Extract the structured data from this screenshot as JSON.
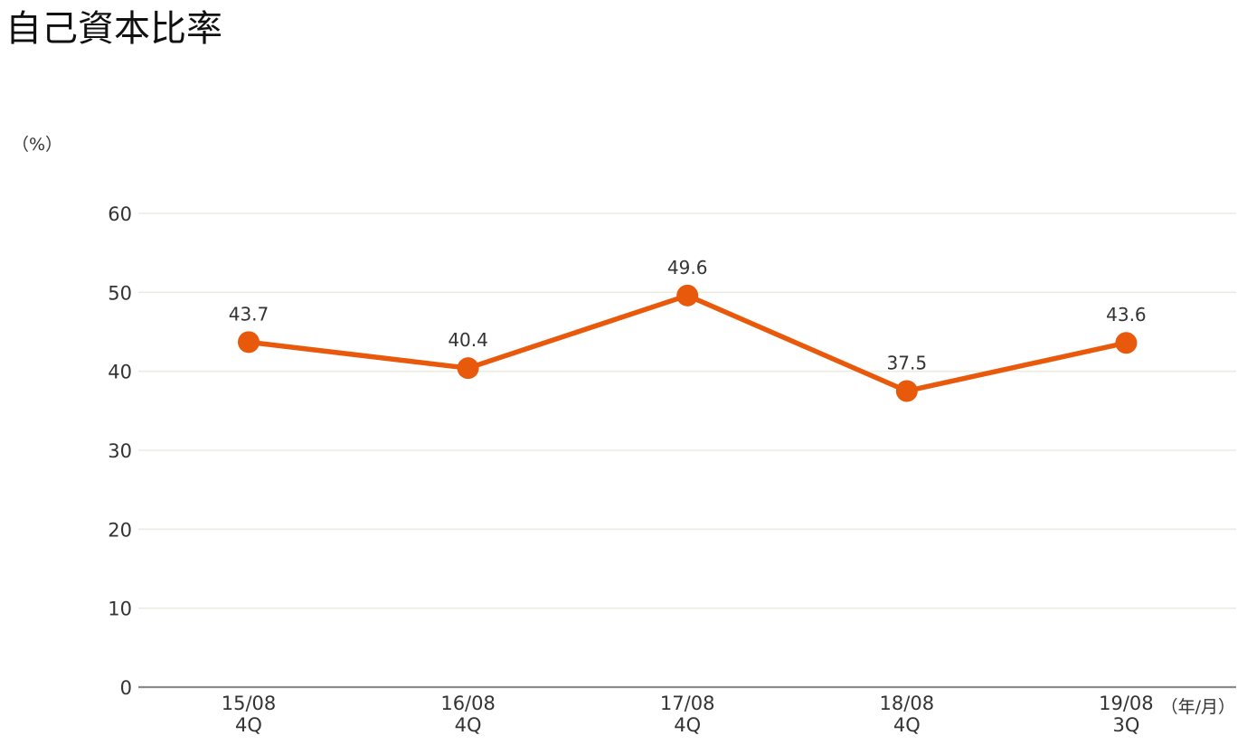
{
  "title": "自己資本比率",
  "chart_data": {
    "type": "line",
    "title": "自己資本比率",
    "y_unit": "（%）",
    "x_unit": "（年/月）",
    "ylim": [
      0,
      60
    ],
    "y_ticks": [
      "0",
      "10",
      "20",
      "30",
      "40",
      "50",
      "60"
    ],
    "categories": [
      [
        "15/08",
        "4Q"
      ],
      [
        "16/08",
        "4Q"
      ],
      [
        "17/08",
        "4Q"
      ],
      [
        "18/08",
        "4Q"
      ],
      [
        "19/08",
        "3Q"
      ]
    ],
    "series": [
      {
        "values": [
          43.7,
          40.4,
          49.6,
          37.5,
          43.6
        ],
        "labels": [
          "43.7",
          "40.4",
          "49.6",
          "37.5",
          "43.6"
        ],
        "color": "#e8590c"
      }
    ],
    "grid": true,
    "legend": "none"
  }
}
